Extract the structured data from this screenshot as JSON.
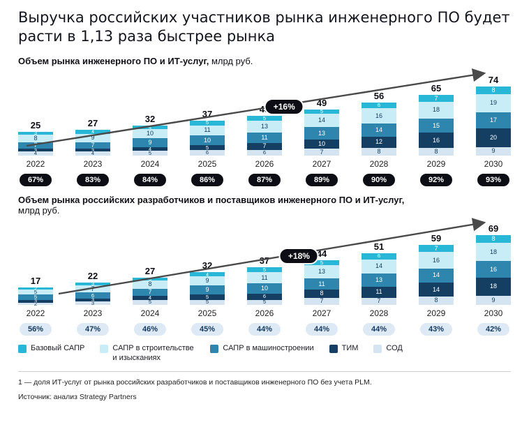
{
  "title": "Выручка российских участников рынка инженерного ПО будет расти в 1,13 раза быстрее рынка",
  "chart_data": [
    {
      "type": "bar",
      "stacked": true,
      "title_bold": "Объем рынка инженерного ПО и ИТ-услуг,",
      "title_unit": "млрд руб.",
      "growth_label": "+16%",
      "badge_style": "dark",
      "legend_position": "bottom",
      "categories": [
        "2022",
        "2023",
        "2024",
        "2025",
        "2026",
        "2027",
        "2028",
        "2029",
        "2030"
      ],
      "totals": [
        25,
        27,
        32,
        37,
        43,
        49,
        56,
        65,
        74
      ],
      "share_labels": [
        "67%",
        "83%",
        "84%",
        "86%",
        "87%",
        "89%",
        "90%",
        "92%",
        "93%"
      ],
      "series": [
        {
          "name": "Базовый САПР",
          "color": "#29b7d8",
          "text_color": "#ffffff",
          "values": [
            3,
            4,
            4,
            5,
            5,
            5,
            6,
            7,
            8
          ]
        },
        {
          "name": "САПР в строительстве и изысканиях",
          "color": "#c9edf6",
          "text_color": "#123a5c",
          "values": [
            8,
            9,
            10,
            11,
            13,
            14,
            16,
            18,
            19
          ]
        },
        {
          "name": "САПР в машиностроении",
          "color": "#2e86ae",
          "text_color": "#ffffff",
          "values": [
            7,
            7,
            9,
            10,
            11,
            13,
            14,
            15,
            17
          ]
        },
        {
          "name": "ТИМ",
          "color": "#143f63",
          "text_color": "#ffffff",
          "values": [
            3,
            3,
            4,
            5,
            7,
            10,
            12,
            16,
            20
          ]
        },
        {
          "name": "СОД",
          "color": "#d4e4f1",
          "text_color": "#123a5c",
          "values": [
            4,
            4,
            5,
            6,
            6,
            7,
            8,
            8,
            9
          ]
        }
      ]
    },
    {
      "type": "bar",
      "stacked": true,
      "title_bold": "Объем рынка российских разработчиков и поставщиков инженерного ПО и ИТ-услуг,",
      "title_unit": "млрд руб.",
      "growth_label": "+18%",
      "badge_style": "light",
      "legend_position": "bottom",
      "categories": [
        "2022",
        "2023",
        "2024",
        "2025",
        "2026",
        "2027",
        "2028",
        "2029",
        "2030"
      ],
      "totals": [
        17,
        22,
        27,
        32,
        37,
        44,
        51,
        59,
        69
      ],
      "share_labels": [
        "56%",
        "47%",
        "46%",
        "45%",
        "44%",
        "44%",
        "44%",
        "43%",
        "42%"
      ],
      "series": [
        {
          "name": "Базовый САПР",
          "color": "#29b7d8",
          "text_color": "#ffffff",
          "values": [
            2,
            3,
            3,
            4,
            5,
            5,
            6,
            7,
            8
          ]
        },
        {
          "name": "САПР в строительстве и изысканиях",
          "color": "#c9edf6",
          "text_color": "#123a5c",
          "values": [
            5,
            7,
            8,
            9,
            11,
            13,
            14,
            16,
            18
          ]
        },
        {
          "name": "САПР в машиностроении",
          "color": "#2e86ae",
          "text_color": "#ffffff",
          "values": [
            5,
            6,
            7,
            9,
            10,
            11,
            13,
            14,
            16
          ]
        },
        {
          "name": "ТИМ",
          "color": "#143f63",
          "text_color": "#ffffff",
          "values": [
            3,
            3,
            4,
            5,
            6,
            8,
            11,
            14,
            18
          ]
        },
        {
          "name": "СОД",
          "color": "#d4e4f1",
          "text_color": "#123a5c",
          "values": [
            2,
            3,
            5,
            5,
            5,
            7,
            7,
            8,
            9
          ]
        }
      ]
    }
  ],
  "legend": [
    {
      "label": "Базовый САПР",
      "color": "#29b7d8"
    },
    {
      "label": "САПР в строительстве и изысканиях",
      "color": "#c9edf6"
    },
    {
      "label": "САПР в машиностроении",
      "color": "#2e86ae"
    },
    {
      "label": "ТИМ",
      "color": "#143f63"
    },
    {
      "label": "СОД",
      "color": "#d4e4f1"
    }
  ],
  "colors": {
    "arrow": "#4a4a4a",
    "dark_badge": "#0d0d15",
    "light_badge": "#dde9f4"
  },
  "footnote": "1 — доля ИТ-услуг от рынка российских разработчиков и поставщиков инженерного ПО без учета PLM.",
  "source": "Источник: анализ Strategy Partners"
}
